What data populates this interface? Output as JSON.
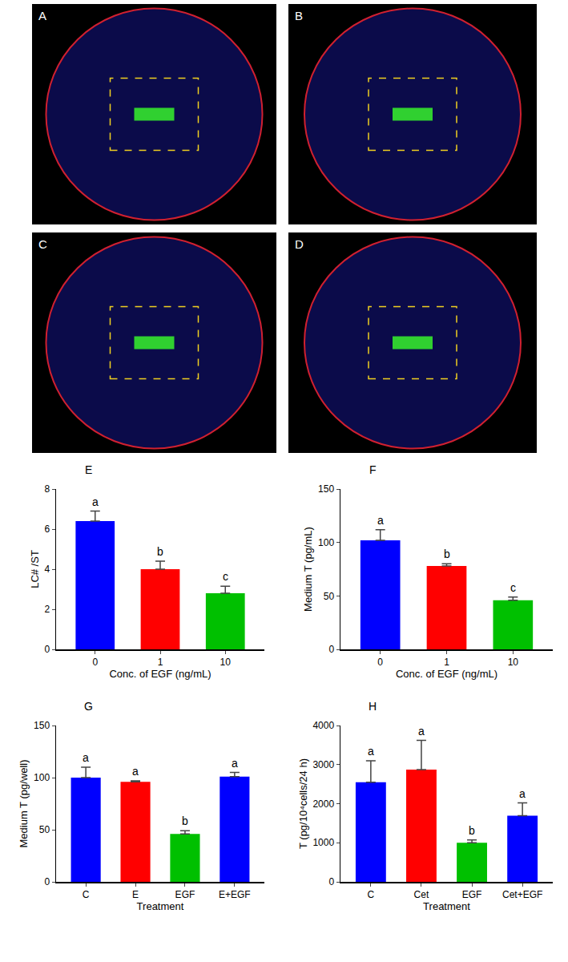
{
  "image_panels": [
    {
      "label": "A"
    },
    {
      "label": "B"
    },
    {
      "label": "C"
    },
    {
      "label": "D"
    }
  ],
  "chart_data": [
    {
      "panel": "E",
      "type": "bar",
      "categories": [
        "0",
        "1",
        "10"
      ],
      "values": [
        6.4,
        4.0,
        2.8
      ],
      "errors": [
        0.5,
        0.4,
        0.35
      ],
      "group_labels": [
        "a",
        "b",
        "c"
      ],
      "colors": [
        "#0000ff",
        "#ff0000",
        "#00c000"
      ],
      "ylim": [
        0,
        8
      ],
      "yticks": [
        0,
        2,
        4,
        6,
        8
      ],
      "x_label": "Conc. of EGF (ng/mL)",
      "y_label": "LC# /ST"
    },
    {
      "panel": "F",
      "type": "bar",
      "categories": [
        "0",
        "1",
        "10"
      ],
      "values": [
        102,
        78,
        46
      ],
      "errors": [
        10,
        2,
        3
      ],
      "group_labels": [
        "a",
        "b",
        "c"
      ],
      "colors": [
        "#0000ff",
        "#ff0000",
        "#00c000"
      ],
      "ylim": [
        0,
        150
      ],
      "yticks": [
        0,
        50,
        100,
        150
      ],
      "x_label": "Conc. of EGF (ng/mL)",
      "y_label": "Medium T (pg/mL)"
    },
    {
      "panel": "G",
      "type": "bar",
      "categories": [
        "C",
        "E",
        "EGF",
        "E+EGF"
      ],
      "values": [
        100,
        96,
        46,
        101
      ],
      "errors": [
        10,
        1,
        3,
        4
      ],
      "group_labels": [
        "a",
        "a",
        "b",
        "a"
      ],
      "colors": [
        "#0000ff",
        "#ff0000",
        "#00c000",
        "#0000ff"
      ],
      "ylim": [
        0,
        150
      ],
      "yticks": [
        0,
        50,
        100,
        150
      ],
      "x_label": "Treatment",
      "y_label": "Medium T (pg/well)"
    },
    {
      "panel": "H",
      "type": "bar",
      "categories": [
        "C",
        "Cet",
        "EGF",
        "Cet+EGF"
      ],
      "values": [
        2550,
        2870,
        1000,
        1690
      ],
      "errors": [
        550,
        750,
        70,
        330
      ],
      "group_labels": [
        "a",
        "a",
        "b",
        "a"
      ],
      "colors": [
        "#0000ff",
        "#ff0000",
        "#00c000",
        "#0000ff"
      ],
      "ylim": [
        0,
        4000
      ],
      "yticks": [
        0,
        1000,
        2000,
        3000,
        4000
      ],
      "x_label": "Treatment",
      "y_label": "T (pg/10⁴cells/24 h)"
    }
  ]
}
